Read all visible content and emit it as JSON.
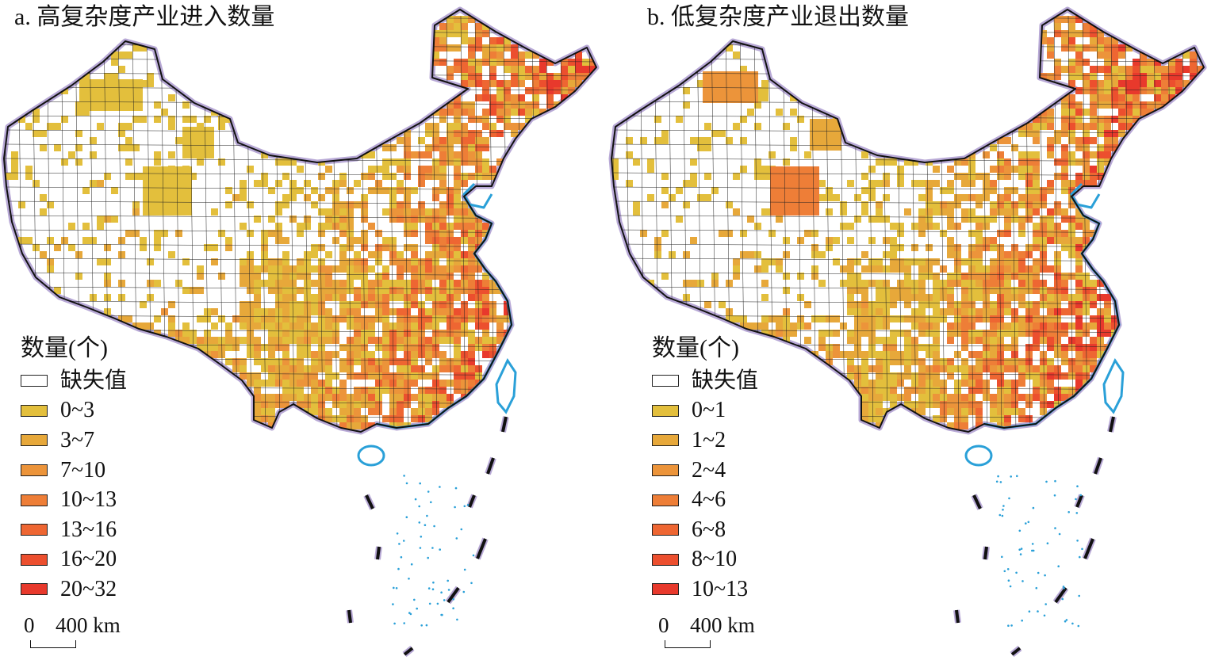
{
  "panels": [
    {
      "id": "a",
      "title": "a. 高复杂度产业进入数量",
      "legend_title": "数量(个)",
      "missing_label": "缺失值",
      "classes": [
        {
          "label": "0~3",
          "color": "#e3bf3c"
        },
        {
          "label": "3~7",
          "color": "#e7a83a"
        },
        {
          "label": "7~10",
          "color": "#ec943a"
        },
        {
          "label": "10~13",
          "color": "#ee7e37"
        },
        {
          "label": "13~16",
          "color": "#ee6632"
        },
        {
          "label": "16~20",
          "color": "#ec4f2e"
        },
        {
          "label": "20~32",
          "color": "#e8392c"
        }
      ],
      "scale_zero": "0",
      "scale_label": "400 km"
    },
    {
      "id": "b",
      "title": "b. 低复杂度产业退出数量",
      "legend_title": "数量(个)",
      "missing_label": "缺失值",
      "classes": [
        {
          "label": "0~1",
          "color": "#e3bf3c"
        },
        {
          "label": "1~2",
          "color": "#e7a83a"
        },
        {
          "label": "2~4",
          "color": "#ec943a"
        },
        {
          "label": "4~6",
          "color": "#ee7e37"
        },
        {
          "label": "6~8",
          "color": "#ee6632"
        },
        {
          "label": "8~10",
          "color": "#ec4f2e"
        },
        {
          "label": "10~13",
          "color": "#e8392c"
        }
      ],
      "scale_zero": "0",
      "scale_label": "400 km"
    }
  ]
}
